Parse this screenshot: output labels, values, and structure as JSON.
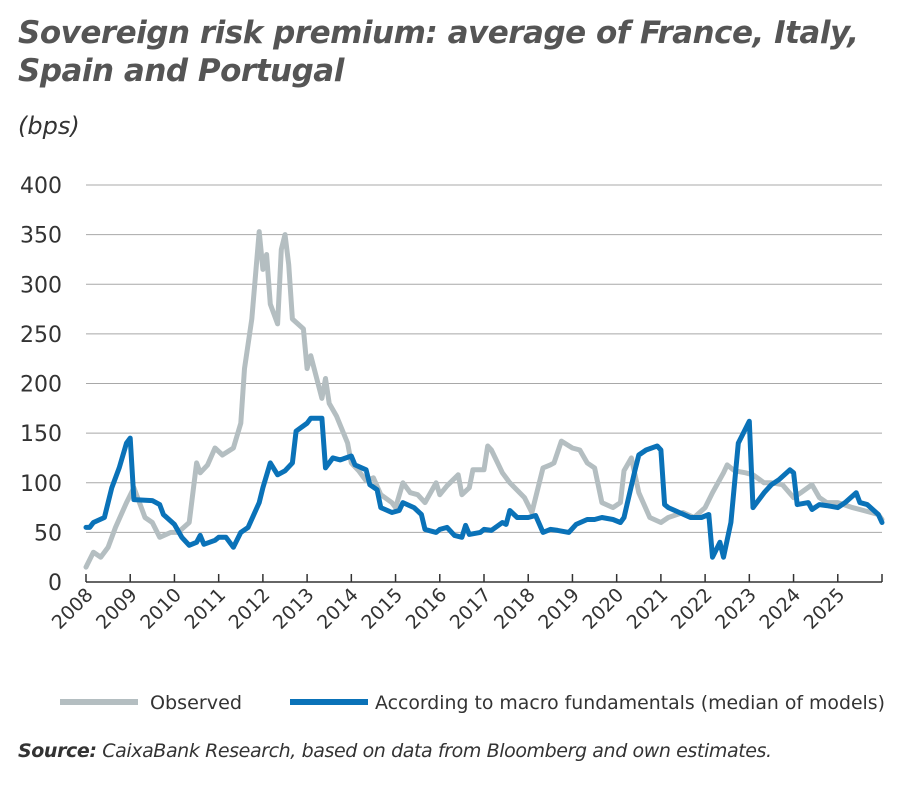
{
  "chart_data": {
    "type": "line",
    "title": "Sovereign risk premium: average of France, Italy, Spain and Portugal",
    "ylabel": "(bps)",
    "ylim": [
      0,
      400
    ],
    "yticks": [
      0,
      50,
      100,
      150,
      200,
      250,
      300,
      350,
      400
    ],
    "xlim": [
      "2008-01",
      "2026-01"
    ],
    "xticks": [
      "2008",
      "2009",
      "2010",
      "2011",
      "2012",
      "2013",
      "2014",
      "2015",
      "2016",
      "2017",
      "2018",
      "2019",
      "2020",
      "2021",
      "2022",
      "2023",
      "2024",
      "2025"
    ],
    "grid": "horizontal",
    "legend": "bottom",
    "series": [
      {
        "name": "Observed",
        "color": "#b4bec1",
        "points": [
          [
            "2008-01",
            15
          ],
          [
            "2008-03",
            30
          ],
          [
            "2008-05",
            25
          ],
          [
            "2008-07",
            35
          ],
          [
            "2008-09",
            55
          ],
          [
            "2008-12",
            80
          ],
          [
            "2009-02",
            95
          ],
          [
            "2009-05",
            65
          ],
          [
            "2009-07",
            60
          ],
          [
            "2009-09",
            45
          ],
          [
            "2009-12",
            50
          ],
          [
            "2010-02",
            50
          ],
          [
            "2010-05",
            60
          ],
          [
            "2010-07",
            120
          ],
          [
            "2010-08",
            110
          ],
          [
            "2010-10",
            118
          ],
          [
            "2010-12",
            135
          ],
          [
            "2011-02",
            128
          ],
          [
            "2011-05",
            135
          ],
          [
            "2011-07",
            160
          ],
          [
            "2011-08",
            215
          ],
          [
            "2011-10",
            265
          ],
          [
            "2011-12",
            353
          ],
          [
            "2012-01",
            315
          ],
          [
            "2012-02",
            330
          ],
          [
            "2012-03",
            280
          ],
          [
            "2012-05",
            260
          ],
          [
            "2012-06",
            335
          ],
          [
            "2012-07",
            350
          ],
          [
            "2012-08",
            320
          ],
          [
            "2012-09",
            265
          ],
          [
            "2012-12",
            255
          ],
          [
            "2013-01",
            215
          ],
          [
            "2013-02",
            228
          ],
          [
            "2013-05",
            185
          ],
          [
            "2013-06",
            205
          ],
          [
            "2013-07",
            180
          ],
          [
            "2013-09",
            167
          ],
          [
            "2013-12",
            140
          ],
          [
            "2014-01",
            120
          ],
          [
            "2014-03",
            112
          ],
          [
            "2014-05",
            102
          ],
          [
            "2014-07",
            105
          ],
          [
            "2014-09",
            88
          ],
          [
            "2014-12",
            80
          ],
          [
            "2015-01",
            75
          ],
          [
            "2015-03",
            100
          ],
          [
            "2015-05",
            90
          ],
          [
            "2015-07",
            88
          ],
          [
            "2015-09",
            80
          ],
          [
            "2015-12",
            100
          ],
          [
            "2016-01",
            88
          ],
          [
            "2016-03",
            97
          ],
          [
            "2016-06",
            108
          ],
          [
            "2016-07",
            88
          ],
          [
            "2016-09",
            95
          ],
          [
            "2016-10",
            113
          ],
          [
            "2017-01",
            113
          ],
          [
            "2017-02",
            137
          ],
          [
            "2017-03",
            133
          ],
          [
            "2017-06",
            110
          ],
          [
            "2017-08",
            100
          ],
          [
            "2017-12",
            85
          ],
          [
            "2018-02",
            70
          ],
          [
            "2018-05",
            115
          ],
          [
            "2018-07",
            118
          ],
          [
            "2018-08",
            120
          ],
          [
            "2018-10",
            142
          ],
          [
            "2019-01",
            135
          ],
          [
            "2019-03",
            133
          ],
          [
            "2019-05",
            120
          ],
          [
            "2019-07",
            115
          ],
          [
            "2019-09",
            80
          ],
          [
            "2019-12",
            75
          ],
          [
            "2020-02",
            80
          ],
          [
            "2020-03",
            112
          ],
          [
            "2020-05",
            125
          ],
          [
            "2020-07",
            90
          ],
          [
            "2020-10",
            65
          ],
          [
            "2021-01",
            60
          ],
          [
            "2021-03",
            65
          ],
          [
            "2021-07",
            70
          ],
          [
            "2021-10",
            65
          ],
          [
            "2022-01",
            75
          ],
          [
            "2022-03",
            90
          ],
          [
            "2022-06",
            110
          ],
          [
            "2022-07",
            118
          ],
          [
            "2022-09",
            112
          ],
          [
            "2022-12",
            110
          ],
          [
            "2023-02",
            108
          ],
          [
            "2023-05",
            100
          ],
          [
            "2023-07",
            100
          ],
          [
            "2023-10",
            98
          ],
          [
            "2024-01",
            85
          ],
          [
            "2024-03",
            90
          ],
          [
            "2024-06",
            98
          ],
          [
            "2024-08",
            85
          ],
          [
            "2024-10",
            80
          ],
          [
            "2025-01",
            80
          ],
          [
            "2025-05",
            75
          ],
          [
            "2025-08",
            72
          ],
          [
            "2025-12",
            68
          ],
          [
            "2026-01",
            63
          ]
        ]
      },
      {
        "name": "According to macro fundamentals (median of models)",
        "color": "#0a72b8",
        "points": [
          [
            "2008-01",
            55
          ],
          [
            "2008-02",
            55
          ],
          [
            "2008-03",
            60
          ],
          [
            "2008-06",
            65
          ],
          [
            "2008-07",
            80
          ],
          [
            "2008-08",
            95
          ],
          [
            "2008-10",
            115
          ],
          [
            "2008-12",
            140
          ],
          [
            "2009-01",
            145
          ],
          [
            "2009-02",
            83
          ],
          [
            "2009-07",
            82
          ],
          [
            "2009-09",
            78
          ],
          [
            "2009-10",
            68
          ],
          [
            "2010-01",
            58
          ],
          [
            "2010-03",
            45
          ],
          [
            "2010-05",
            37
          ],
          [
            "2010-07",
            40
          ],
          [
            "2010-08",
            47
          ],
          [
            "2010-09",
            38
          ],
          [
            "2010-12",
            42
          ],
          [
            "2011-01",
            45
          ],
          [
            "2011-03",
            45
          ],
          [
            "2011-05",
            35
          ],
          [
            "2011-07",
            50
          ],
          [
            "2011-09",
            55
          ],
          [
            "2011-12",
            80
          ],
          [
            "2012-01",
            95
          ],
          [
            "2012-03",
            120
          ],
          [
            "2012-05",
            108
          ],
          [
            "2012-07",
            112
          ],
          [
            "2012-09",
            120
          ],
          [
            "2012-10",
            152
          ],
          [
            "2013-01",
            160
          ],
          [
            "2013-02",
            165
          ],
          [
            "2013-05",
            165
          ],
          [
            "2013-06",
            115
          ],
          [
            "2013-08",
            125
          ],
          [
            "2013-10",
            123
          ],
          [
            "2014-01",
            127
          ],
          [
            "2014-02",
            118
          ],
          [
            "2014-05",
            113
          ],
          [
            "2014-06",
            98
          ],
          [
            "2014-08",
            93
          ],
          [
            "2014-09",
            75
          ],
          [
            "2014-12",
            70
          ],
          [
            "2015-02",
            72
          ],
          [
            "2015-03",
            80
          ],
          [
            "2015-06",
            75
          ],
          [
            "2015-08",
            68
          ],
          [
            "2015-09",
            53
          ],
          [
            "2015-12",
            50
          ],
          [
            "2016-01",
            53
          ],
          [
            "2016-03",
            55
          ],
          [
            "2016-05",
            47
          ],
          [
            "2016-07",
            45
          ],
          [
            "2016-08",
            57
          ],
          [
            "2016-09",
            48
          ],
          [
            "2016-12",
            50
          ],
          [
            "2017-01",
            53
          ],
          [
            "2017-03",
            52
          ],
          [
            "2017-06",
            60
          ],
          [
            "2017-07",
            58
          ],
          [
            "2017-08",
            72
          ],
          [
            "2017-10",
            65
          ],
          [
            "2018-01",
            65
          ],
          [
            "2018-03",
            67
          ],
          [
            "2018-05",
            50
          ],
          [
            "2018-07",
            53
          ],
          [
            "2018-09",
            52
          ],
          [
            "2018-12",
            50
          ],
          [
            "2019-02",
            58
          ],
          [
            "2019-05",
            63
          ],
          [
            "2019-07",
            63
          ],
          [
            "2019-09",
            65
          ],
          [
            "2019-12",
            63
          ],
          [
            "2020-02",
            60
          ],
          [
            "2020-03",
            65
          ],
          [
            "2020-06",
            113
          ],
          [
            "2020-07",
            128
          ],
          [
            "2020-09",
            133
          ],
          [
            "2020-12",
            137
          ],
          [
            "2021-01",
            133
          ],
          [
            "2021-02",
            78
          ],
          [
            "2021-03",
            75
          ],
          [
            "2021-06",
            70
          ],
          [
            "2021-09",
            65
          ],
          [
            "2021-12",
            65
          ],
          [
            "2022-02",
            68
          ],
          [
            "2022-03",
            25
          ],
          [
            "2022-05",
            40
          ],
          [
            "2022-06",
            25
          ],
          [
            "2022-08",
            60
          ],
          [
            "2022-10",
            140
          ],
          [
            "2023-01",
            162
          ],
          [
            "2023-02",
            75
          ],
          [
            "2023-05",
            90
          ],
          [
            "2023-07",
            98
          ],
          [
            "2023-09",
            103
          ],
          [
            "2023-12",
            113
          ],
          [
            "2024-01",
            110
          ],
          [
            "2024-02",
            78
          ],
          [
            "2024-05",
            80
          ],
          [
            "2024-06",
            73
          ],
          [
            "2024-08",
            78
          ],
          [
            "2024-10",
            77
          ],
          [
            "2025-01",
            75
          ],
          [
            "2025-03",
            80
          ],
          [
            "2025-06",
            90
          ],
          [
            "2025-07",
            80
          ],
          [
            "2025-09",
            78
          ],
          [
            "2025-12",
            68
          ],
          [
            "2026-01",
            60
          ]
        ]
      }
    ]
  },
  "source": {
    "label": "Source:",
    "text": " CaixaBank Research, based on data from Bloomberg and own estimates."
  }
}
